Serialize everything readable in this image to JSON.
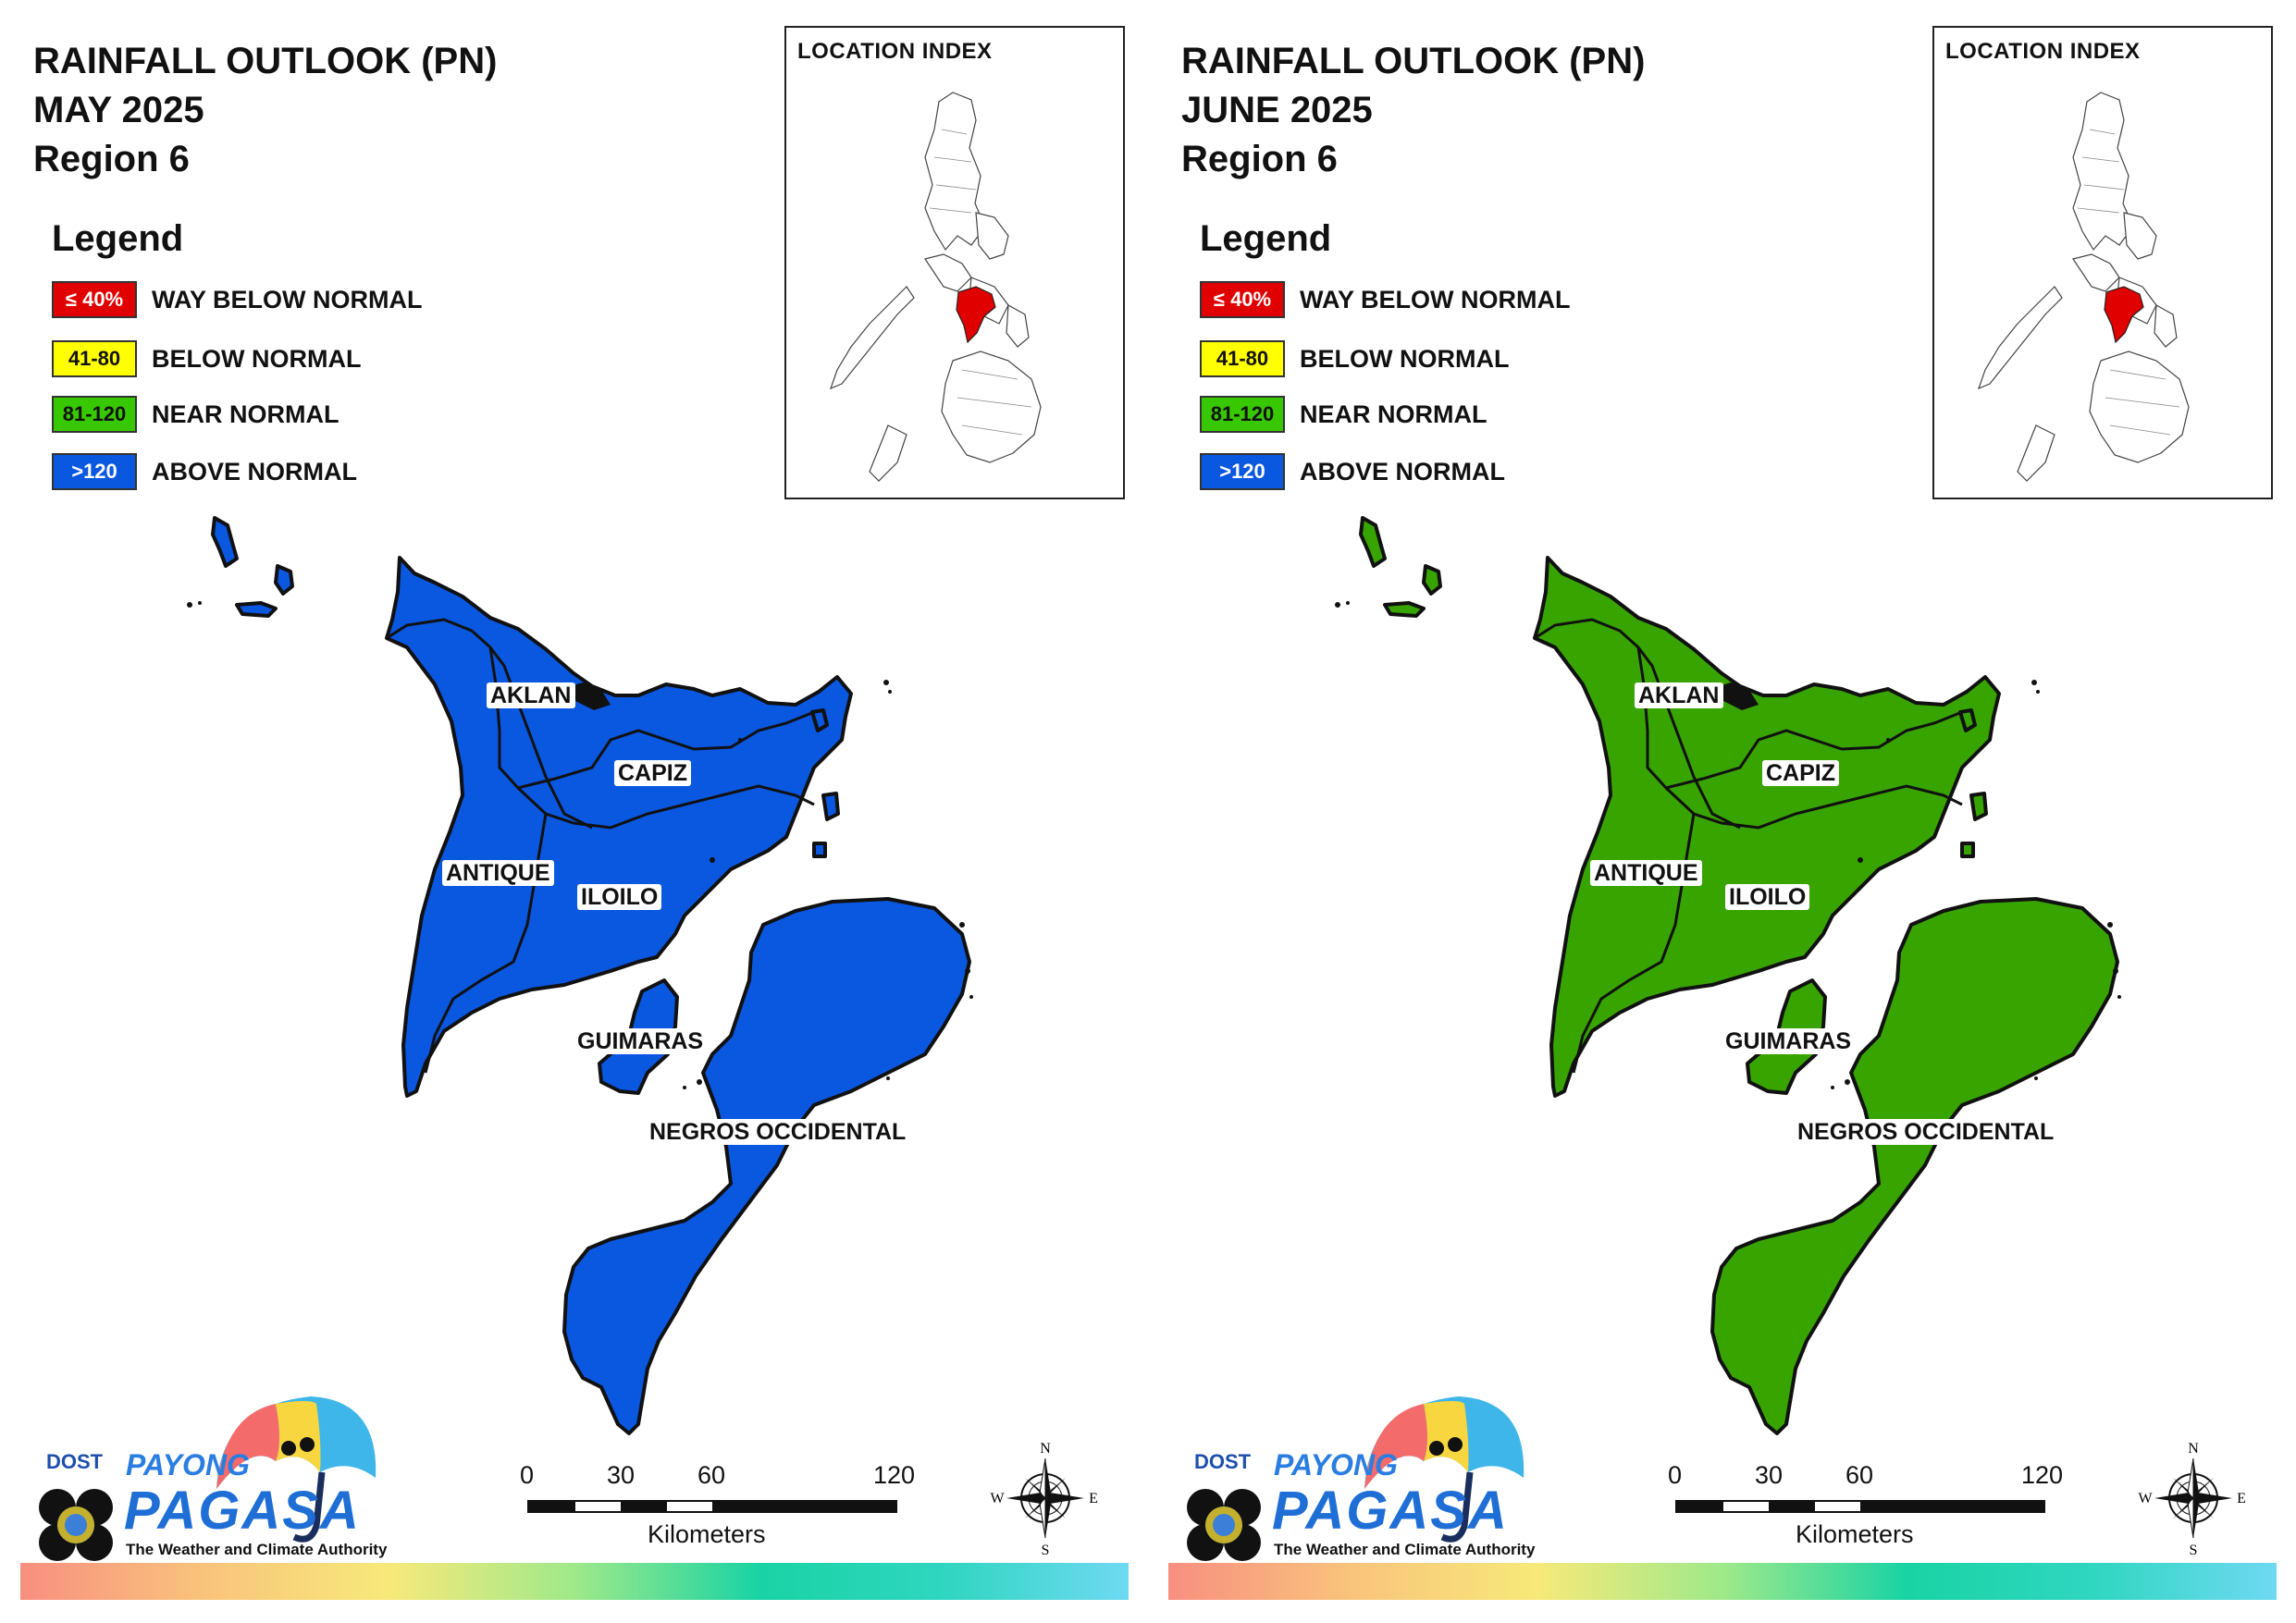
{
  "panels": [
    {
      "title_line1": "RAINFALL OUTLOOK (PN)",
      "title_line2": "MAY 2025",
      "title_line3": "Region 6",
      "fill_color": "#0a57e0",
      "outlook_category": "ABOVE NORMAL"
    },
    {
      "title_line1": "RAINFALL OUTLOOK (PN)",
      "title_line2": "JUNE 2025",
      "title_line3": "Region 6",
      "fill_color": "#38a400",
      "outlook_category": "NEAR NORMAL"
    }
  ],
  "legend": {
    "title": "Legend",
    "items": [
      {
        "range": "≤ 40%",
        "label": "WAY BELOW NORMAL",
        "color": "#e00000",
        "text_color": "#ffffff"
      },
      {
        "range": "41-80",
        "label": "BELOW NORMAL",
        "color": "#ffff00",
        "text_color": "#111111"
      },
      {
        "range": "81-120",
        "label": "NEAR NORMAL",
        "color": "#38c800",
        "text_color": "#111111"
      },
      {
        "range": ">120",
        "label": "ABOVE NORMAL",
        "color": "#0a57e0",
        "text_color": "#ffffff"
      }
    ]
  },
  "inset": {
    "title": "LOCATION INDEX",
    "highlight_color": "#e00000"
  },
  "provinces": {
    "aklan": "AKLAN",
    "capiz": "CAPIZ",
    "antique": "ANTIQUE",
    "iloilo": "ILOILO",
    "guimaras": "GUIMARAS",
    "negros": "NEGROS OCCIDENTAL"
  },
  "scale": {
    "ticks": [
      "0",
      "30",
      "60",
      "120"
    ],
    "unit": "Kilometers"
  },
  "compass": {
    "n": "N",
    "e": "E",
    "s": "S",
    "w": "W"
  },
  "logo": {
    "dost": "DOST",
    "payong": "PAYONG",
    "pagasa": "PAGASA",
    "tagline": "The Weather and Climate Authority"
  }
}
